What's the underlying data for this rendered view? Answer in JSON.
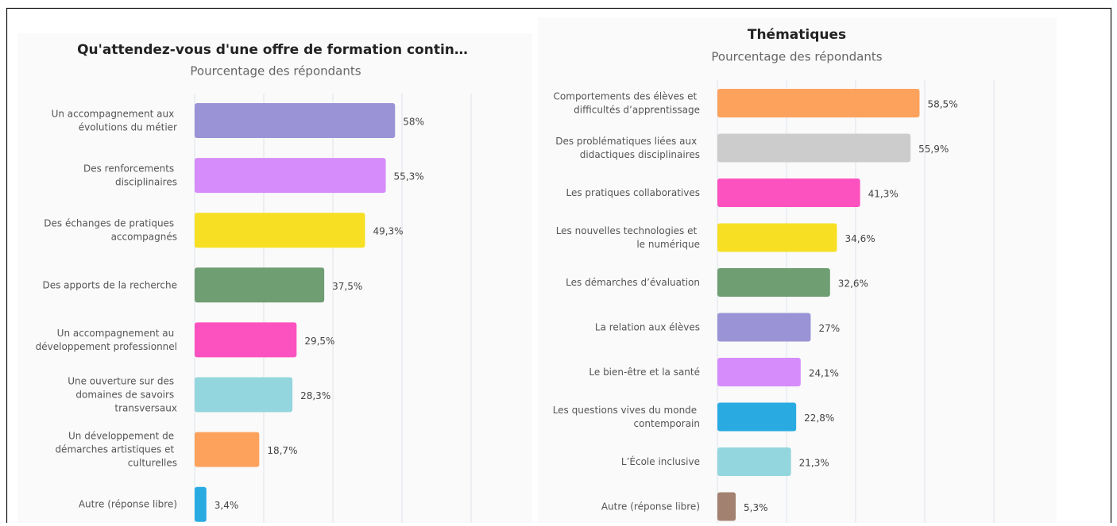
{
  "chart_data": [
    {
      "type": "bar",
      "orientation": "horizontal",
      "title": "Qu'attendez-vous d'une offre de formation contin…",
      "subtitle": "Pourcentage des répondants",
      "categories": [
        "Un accompagnement aux évolutions du métier",
        "Des renforcements disciplinaires",
        "Des échanges de pratiques accompagnés",
        "Des apports de la recherche",
        "Un accompagnement au développement professionnel",
        "Une ouverture sur des domaines de savoirs transversaux",
        "Un développement de démarches artistiques et culturelles",
        "Autre (réponse libre)"
      ],
      "values": [
        58,
        55.3,
        49.3,
        37.5,
        29.5,
        28.3,
        18.7,
        3.4
      ],
      "value_labels": [
        "58%",
        "55,3%",
        "49,3%",
        "37,5%",
        "29,5%",
        "28,3%",
        "18,7%",
        "3,4%"
      ],
      "colors": [
        "#9a93d6",
        "#d68cfa",
        "#f7e024",
        "#6e9e72",
        "#fc52bf",
        "#94d6de",
        "#fda25d",
        "#29abe2"
      ],
      "xlim": [
        0,
        80
      ],
      "xticks": [
        0,
        20,
        40,
        60,
        80
      ],
      "grid": true
    },
    {
      "type": "bar",
      "orientation": "horizontal",
      "title": "Thématiques",
      "subtitle": "Pourcentage des répondants",
      "categories": [
        "Comportements des élèves et difficultés d’apprentissage",
        "Des problématiques liées aux didactiques disciplinaires",
        "Les pratiques collaboratives",
        "Les nouvelles technologies et le numérique",
        "Les démarches d’évaluation",
        "La relation aux élèves",
        "Le bien-être et la santé",
        "Les questions vives du monde contemporain",
        "L’École inclusive",
        "Autre (réponse libre)"
      ],
      "values": [
        58.5,
        55.9,
        41.3,
        34.6,
        32.6,
        27,
        24.1,
        22.8,
        21.3,
        5.3
      ],
      "value_labels": [
        "58,5%",
        "55,9%",
        "41,3%",
        "34,6%",
        "32,6%",
        "27%",
        "24,1%",
        "22,8%",
        "21,3%",
        "5,3%"
      ],
      "colors": [
        "#fda25d",
        "#cccccc",
        "#fc52bf",
        "#f7e024",
        "#6e9e72",
        "#9a93d6",
        "#d68cfa",
        "#29abe2",
        "#94d6de",
        "#a38170"
      ],
      "xlim": [
        0,
        80
      ],
      "xticks": [
        0,
        20,
        40,
        60,
        80
      ],
      "grid": true
    }
  ]
}
